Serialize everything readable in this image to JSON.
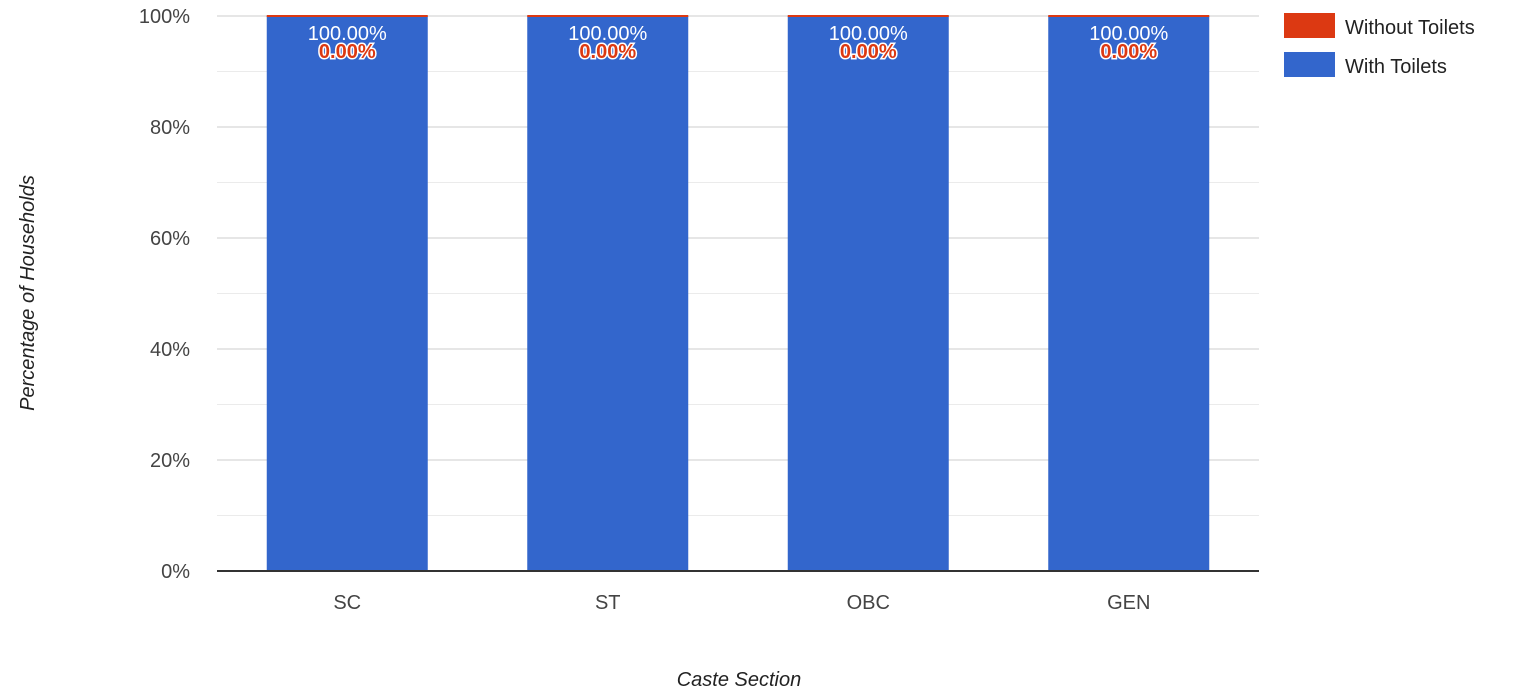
{
  "chart_data": {
    "type": "bar",
    "stacked": true,
    "categories": [
      "SC",
      "ST",
      "OBC",
      "GEN"
    ],
    "series": [
      {
        "name": "With Toilets",
        "values": [
          100.0,
          100.0,
          100.0,
          100.0
        ],
        "labels": [
          "100.00%",
          "100.00%",
          "100.00%",
          "100.00%"
        ],
        "color": "#3366cc"
      },
      {
        "name": "Without Toilets",
        "values": [
          0.0,
          0.0,
          0.0,
          0.0
        ],
        "labels": [
          "0.00%",
          "0.00%",
          "0.00%",
          "0.00%"
        ],
        "color": "#dc3912"
      }
    ],
    "xlabel": "Caste Section",
    "ylabel": "Percentage of Households",
    "ylim": [
      0,
      100
    ],
    "yticks": [
      "0%",
      "20%",
      "40%",
      "60%",
      "80%",
      "100%"
    ],
    "grid": true,
    "legend": "top-right",
    "legend_entries": [
      "Without Toilets",
      "With Toilets"
    ]
  }
}
